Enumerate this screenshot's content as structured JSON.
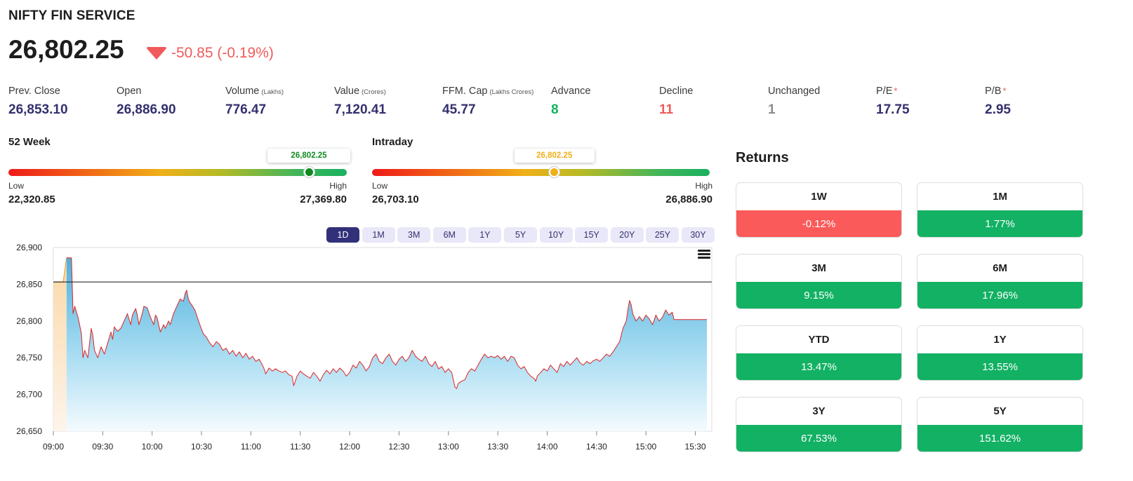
{
  "header": {
    "index_name": "NIFTY FIN SERVICE",
    "price": "26,802.25",
    "change": "-50.85 (-0.19%)",
    "direction_icon": "triangle-down-icon",
    "change_color": "#f05a5a"
  },
  "stats": [
    {
      "label": "Prev. Close",
      "unit": "",
      "star": "",
      "value": "26,853.10",
      "tone": ""
    },
    {
      "label": "Open",
      "unit": "",
      "star": "",
      "value": "26,886.90",
      "tone": ""
    },
    {
      "label": "Volume",
      "unit": "(Lakhs)",
      "star": "",
      "value": "776.47",
      "tone": ""
    },
    {
      "label": "Value",
      "unit": "(Crores)",
      "star": "",
      "value": "7,120.41",
      "tone": ""
    },
    {
      "label": "FFM. Cap",
      "unit": "(Lakhs Crores)",
      "star": "",
      "value": "45.77",
      "tone": ""
    },
    {
      "label": "Advance",
      "unit": "",
      "star": "",
      "value": "8",
      "tone": "green"
    },
    {
      "label": "Decline",
      "unit": "",
      "star": "",
      "value": "11",
      "tone": "red"
    },
    {
      "label": "Unchanged",
      "unit": "",
      "star": "",
      "value": "1",
      "tone": "grey"
    },
    {
      "label": "P/E",
      "unit": "",
      "star": "*",
      "value": "17.75",
      "tone": ""
    },
    {
      "label": "P/B",
      "unit": "",
      "star": "*",
      "value": "2.95",
      "tone": ""
    }
  ],
  "ranges": {
    "week52": {
      "title": "52 Week",
      "current": "26,802.25",
      "current_color": "#0f8a20",
      "low_label": "Low",
      "low": "22,320.85",
      "high_label": "High",
      "high": "27,369.80",
      "position_fraction": 0.888
    },
    "intraday": {
      "title": "Intraday",
      "current": "26,802.25",
      "current_color": "#f0b019",
      "low_label": "Low",
      "low": "26,703.10",
      "high_label": "High",
      "high": "26,886.90",
      "position_fraction": 0.54
    }
  },
  "periods": [
    "1D",
    "1M",
    "3M",
    "6M",
    "1Y",
    "5Y",
    "10Y",
    "15Y",
    "20Y",
    "25Y",
    "30Y"
  ],
  "active_period": "1D",
  "chart_menu_icon": "hamburger-menu-icon",
  "chart_data": {
    "type": "area",
    "xlabel": "",
    "ylabel": "",
    "ylim": [
      26650,
      26900
    ],
    "y_ticks": [
      "26,900",
      "26,850",
      "26,800",
      "26,750",
      "26,700",
      "26,650"
    ],
    "x_ticks": [
      "09:00",
      "09:30",
      "10:00",
      "10:30",
      "11:00",
      "11:30",
      "12:00",
      "12:30",
      "13:00",
      "13:30",
      "14:00",
      "14:30",
      "15:00",
      "15:30"
    ],
    "x_range": [
      "09:00",
      "15:40"
    ],
    "reference_line": {
      "label": "Prev. Close",
      "value": 26853.1
    },
    "pre_open": {
      "from": "09:00",
      "to": "09:08",
      "value": 26853,
      "peak_time": "09:06",
      "peak_value": 26886
    },
    "series": [
      {
        "color": "#e02424",
        "points": [
          [
            "09:08",
            26886
          ],
          [
            "09:11",
            26886
          ],
          [
            "09:12",
            26810
          ],
          [
            "09:13",
            26820
          ],
          [
            "09:15",
            26805
          ],
          [
            "09:17",
            26783
          ],
          [
            "09:18",
            26750
          ],
          [
            "09:19",
            26760
          ],
          [
            "09:21",
            26750
          ],
          [
            "09:22",
            26770
          ],
          [
            "09:23",
            26790
          ],
          [
            "09:24",
            26780
          ],
          [
            "09:25",
            26760
          ],
          [
            "09:27",
            26750
          ],
          [
            "09:29",
            26765
          ],
          [
            "09:31",
            26755
          ],
          [
            "09:33",
            26770
          ],
          [
            "09:35",
            26785
          ],
          [
            "09:36",
            26775
          ],
          [
            "09:37",
            26792
          ],
          [
            "09:39",
            26786
          ],
          [
            "09:41",
            26790
          ],
          [
            "09:43",
            26800
          ],
          [
            "09:45",
            26810
          ],
          [
            "09:47",
            26795
          ],
          [
            "09:48",
            26808
          ],
          [
            "09:50",
            26817
          ],
          [
            "09:51",
            26808
          ],
          [
            "09:52",
            26795
          ],
          [
            "09:54",
            26810
          ],
          [
            "09:55",
            26820
          ],
          [
            "09:57",
            26818
          ],
          [
            "09:59",
            26805
          ],
          [
            "10:01",
            26795
          ],
          [
            "10:02",
            26808
          ],
          [
            "10:03",
            26805
          ],
          [
            "10:05",
            26785
          ],
          [
            "10:07",
            26795
          ],
          [
            "10:08",
            26790
          ],
          [
            "10:10",
            26800
          ],
          [
            "10:11",
            26795
          ],
          [
            "10:13",
            26810
          ],
          [
            "10:15",
            26820
          ],
          [
            "10:17",
            26830
          ],
          [
            "10:19",
            26827
          ],
          [
            "10:20",
            26837
          ],
          [
            "10:21",
            26842
          ],
          [
            "10:22",
            26830
          ],
          [
            "10:23",
            26825
          ],
          [
            "10:24",
            26822
          ],
          [
            "10:26",
            26815
          ],
          [
            "10:27",
            26808
          ],
          [
            "10:29",
            26795
          ],
          [
            "10:31",
            26783
          ],
          [
            "10:33",
            26778
          ],
          [
            "10:35",
            26770
          ],
          [
            "10:37",
            26765
          ],
          [
            "10:39",
            26772
          ],
          [
            "10:41",
            26768
          ],
          [
            "10:43",
            26760
          ],
          [
            "10:45",
            26763
          ],
          [
            "10:47",
            26755
          ],
          [
            "10:49",
            26760
          ],
          [
            "10:51",
            26752
          ],
          [
            "10:53",
            26758
          ],
          [
            "10:55",
            26750
          ],
          [
            "10:57",
            26756
          ],
          [
            "10:59",
            26748
          ],
          [
            "11:01",
            26752
          ],
          [
            "11:03",
            26745
          ],
          [
            "11:05",
            26748
          ],
          [
            "11:07",
            26740
          ],
          [
            "11:08",
            26735
          ],
          [
            "11:09",
            26728
          ],
          [
            "11:11",
            26736
          ],
          [
            "11:13",
            26732
          ],
          [
            "11:15",
            26735
          ],
          [
            "11:17",
            26732
          ],
          [
            "11:19",
            26730
          ],
          [
            "11:21",
            26732
          ],
          [
            "11:23",
            26727
          ],
          [
            "11:25",
            26725
          ],
          [
            "11:26",
            26712
          ],
          [
            "11:27",
            26718
          ],
          [
            "11:28",
            26725
          ],
          [
            "11:30",
            26732
          ],
          [
            "11:32",
            26728
          ],
          [
            "11:34",
            26725
          ],
          [
            "11:36",
            26722
          ],
          [
            "11:38",
            26730
          ],
          [
            "11:40",
            26725
          ],
          [
            "11:42",
            26718
          ],
          [
            "11:44",
            26727
          ],
          [
            "11:46",
            26733
          ],
          [
            "11:48",
            26728
          ],
          [
            "11:50",
            26735
          ],
          [
            "11:52",
            26730
          ],
          [
            "11:54",
            26736
          ],
          [
            "11:56",
            26732
          ],
          [
            "11:58",
            26725
          ],
          [
            "12:00",
            26730
          ],
          [
            "12:02",
            26740
          ],
          [
            "12:04",
            26736
          ],
          [
            "12:06",
            26745
          ],
          [
            "12:08",
            26740
          ],
          [
            "12:10",
            26732
          ],
          [
            "12:12",
            26738
          ],
          [
            "12:14",
            26750
          ],
          [
            "12:16",
            26755
          ],
          [
            "12:18",
            26745
          ],
          [
            "12:20",
            26742
          ],
          [
            "12:22",
            26750
          ],
          [
            "12:24",
            26755
          ],
          [
            "12:26",
            26745
          ],
          [
            "12:28",
            26740
          ],
          [
            "12:30",
            26748
          ],
          [
            "12:32",
            26752
          ],
          [
            "12:34",
            26745
          ],
          [
            "12:36",
            26750
          ],
          [
            "12:38",
            26760
          ],
          [
            "12:40",
            26752
          ],
          [
            "12:42",
            26748
          ],
          [
            "12:44",
            26745
          ],
          [
            "12:46",
            26752
          ],
          [
            "12:48",
            26742
          ],
          [
            "12:50",
            26738
          ],
          [
            "12:52",
            26745
          ],
          [
            "12:54",
            26735
          ],
          [
            "12:56",
            26738
          ],
          [
            "12:58",
            26730
          ],
          [
            "13:00",
            26735
          ],
          [
            "13:02",
            26730
          ],
          [
            "13:03",
            26720
          ],
          [
            "13:04",
            26710
          ],
          [
            "13:05",
            26708
          ],
          [
            "13:06",
            26715
          ],
          [
            "13:08",
            26718
          ],
          [
            "13:10",
            26720
          ],
          [
            "13:12",
            26730
          ],
          [
            "13:14",
            26735
          ],
          [
            "13:16",
            26732
          ],
          [
            "13:18",
            26740
          ],
          [
            "13:20",
            26748
          ],
          [
            "13:22",
            26755
          ],
          [
            "13:24",
            26750
          ],
          [
            "13:26",
            26752
          ],
          [
            "13:28",
            26750
          ],
          [
            "13:30",
            26753
          ],
          [
            "13:32",
            26748
          ],
          [
            "13:34",
            26752
          ],
          [
            "13:36",
            26745
          ],
          [
            "13:38",
            26752
          ],
          [
            "13:40",
            26750
          ],
          [
            "13:42",
            26740
          ],
          [
            "13:44",
            26735
          ],
          [
            "13:46",
            26738
          ],
          [
            "13:48",
            26730
          ],
          [
            "13:50",
            26725
          ],
          [
            "13:52",
            26722
          ],
          [
            "13:53",
            26718
          ],
          [
            "13:54",
            26725
          ],
          [
            "13:56",
            26730
          ],
          [
            "13:58",
            26735
          ],
          [
            "14:00",
            26732
          ],
          [
            "14:02",
            26740
          ],
          [
            "14:04",
            26735
          ],
          [
            "14:06",
            26730
          ],
          [
            "14:08",
            26742
          ],
          [
            "14:10",
            26738
          ],
          [
            "14:12",
            26745
          ],
          [
            "14:14",
            26740
          ],
          [
            "14:16",
            26745
          ],
          [
            "14:18",
            26750
          ],
          [
            "14:20",
            26743
          ],
          [
            "14:22",
            26740
          ],
          [
            "14:24",
            26745
          ],
          [
            "14:26",
            26742
          ],
          [
            "14:28",
            26746
          ],
          [
            "14:30",
            26748
          ],
          [
            "14:32",
            26745
          ],
          [
            "14:34",
            26750
          ],
          [
            "14:36",
            26755
          ],
          [
            "14:38",
            26752
          ],
          [
            "14:40",
            26758
          ],
          [
            "14:42",
            26765
          ],
          [
            "14:44",
            26772
          ],
          [
            "14:46",
            26790
          ],
          [
            "14:48",
            26800
          ],
          [
            "14:49",
            26815
          ],
          [
            "14:50",
            26828
          ],
          [
            "14:51",
            26822
          ],
          [
            "14:52",
            26810
          ],
          [
            "14:54",
            26800
          ],
          [
            "14:56",
            26806
          ],
          [
            "14:58",
            26800
          ],
          [
            "15:00",
            26808
          ],
          [
            "15:02",
            26803
          ],
          [
            "15:04",
            26795
          ],
          [
            "15:06",
            26808
          ],
          [
            "15:08",
            26800
          ],
          [
            "15:10",
            26805
          ],
          [
            "15:12",
            26815
          ],
          [
            "15:14",
            26808
          ],
          [
            "15:16",
            26812
          ],
          [
            "15:17",
            26802
          ],
          [
            "15:37",
            26802
          ]
        ]
      }
    ]
  },
  "returns": {
    "title": "Returns",
    "positive_color": "#12b163",
    "negative_color": "#fb5a5a",
    "items": [
      {
        "period": "1W",
        "value": "-0.12%",
        "sign": "negative"
      },
      {
        "period": "1M",
        "value": "1.77%",
        "sign": "positive"
      },
      {
        "period": "3M",
        "value": "9.15%",
        "sign": "positive"
      },
      {
        "period": "6M",
        "value": "17.96%",
        "sign": "positive"
      },
      {
        "period": "YTD",
        "value": "13.47%",
        "sign": "positive"
      },
      {
        "period": "1Y",
        "value": "13.55%",
        "sign": "positive"
      },
      {
        "period": "3Y",
        "value": "67.53%",
        "sign": "positive"
      },
      {
        "period": "5Y",
        "value": "151.62%",
        "sign": "positive"
      }
    ]
  }
}
